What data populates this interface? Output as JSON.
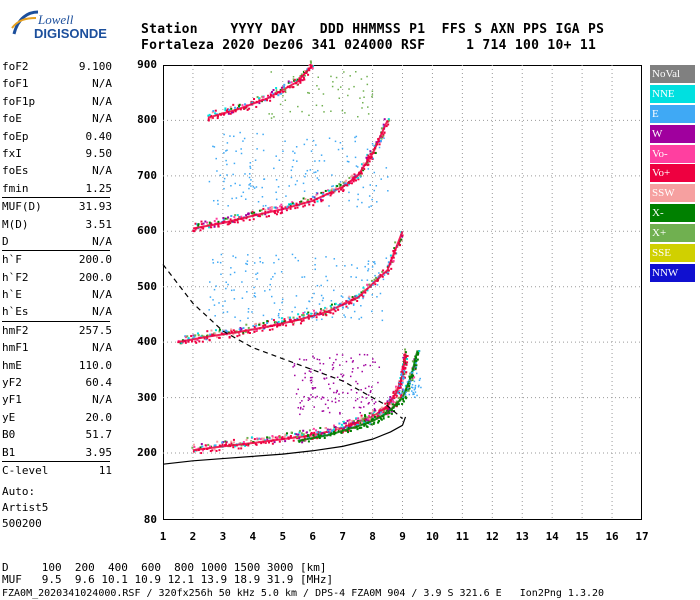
{
  "logo": {
    "line1": "Lowell",
    "line2": "DIGISONDE"
  },
  "header": {
    "row1": "Station    YYYY DAY   DDD HHMMSS P1  FFS S AXN PPS IGA PS",
    "row2": "Fortaleza 2020 Dez06 341 024000 RSF     1 714 100 10+ 11"
  },
  "params": [
    {
      "name": "foF2",
      "value": "9.100"
    },
    {
      "name": "foF1",
      "value": "N/A"
    },
    {
      "name": "foF1p",
      "value": "N/A"
    },
    {
      "name": "foE",
      "value": "N/A"
    },
    {
      "name": "foEp",
      "value": "0.40"
    },
    {
      "name": "fxI",
      "value": "9.50"
    },
    {
      "name": "foEs",
      "value": "N/A"
    },
    {
      "name": "fmin",
      "value": "1.25"
    },
    {
      "name": "MUF(D)",
      "value": "31.93"
    },
    {
      "name": "M(D)",
      "value": "3.51"
    },
    {
      "name": "D",
      "value": "N/A"
    },
    {
      "name": "h`F",
      "value": "200.0"
    },
    {
      "name": "h`F2",
      "value": "200.0"
    },
    {
      "name": "h`E",
      "value": "N/A"
    },
    {
      "name": "h`Es",
      "value": "N/A"
    },
    {
      "name": "hmF2",
      "value": "257.5"
    },
    {
      "name": "hmF1",
      "value": "N/A"
    },
    {
      "name": "hmE",
      "value": "110.0"
    },
    {
      "name": "yF2",
      "value": "60.4"
    },
    {
      "name": "yF1",
      "value": "N/A"
    },
    {
      "name": "yE",
      "value": "20.0"
    },
    {
      "name": "B0",
      "value": "51.7"
    },
    {
      "name": "B1",
      "value": "3.95"
    },
    {
      "name": "C-level",
      "value": "11"
    }
  ],
  "auto": {
    "line1": "Auto:",
    "line2": "Artist5",
    "line3": "500200"
  },
  "legend": [
    {
      "label": "NoVal",
      "color": "#808080"
    },
    {
      "label": "NNE",
      "color": "#00e0e0"
    },
    {
      "label": "E",
      "color": "#3fa9f5"
    },
    {
      "label": "W",
      "color": "#a0009e"
    },
    {
      "label": "Vo-",
      "color": "#ff3fa0"
    },
    {
      "label": "Vo+",
      "color": "#ee0040"
    },
    {
      "label": "SSW",
      "color": "#f6a0a0"
    },
    {
      "label": "X-",
      "color": "#008000"
    },
    {
      "label": "X+",
      "color": "#70b050"
    },
    {
      "label": "SSE",
      "color": "#d0d000"
    },
    {
      "label": "NNW",
      "color": "#1010d0"
    }
  ],
  "footer": {
    "line1": "D     100  200  400  600  800 1000 1500 3000 [km]",
    "line2": "MUF   9.5  9.6 10.1 10.9 12.1 13.9 18.9 31.9 [MHz]",
    "line3": "FZA0M_2020341024000.RSF / 320fx256h 50 kHz 5.0 km / DPS-4 FZA0M 904 / 3.9 S 321.6 E   Ion2Png 1.3.20"
  },
  "chart_data": {
    "type": "scatter",
    "title": "",
    "xlabel": "",
    "ylabel": "",
    "xlim": [
      1,
      17
    ],
    "ylim": [
      80,
      900
    ],
    "x_ticks": [
      "1",
      "2",
      "3",
      "4",
      "5",
      "6",
      "7",
      "8",
      "9",
      "10",
      "11",
      "12",
      "13",
      "14",
      "15",
      "16",
      "17"
    ],
    "y_ticks": [
      "900",
      "800",
      "700",
      "600",
      "500",
      "400",
      "300",
      "200",
      "80"
    ],
    "grid": "dotted",
    "series": [
      {
        "name": "Vo+",
        "color": "#ee0040",
        "trace": "1st hop O-mode",
        "x": [
          2.0,
          3.0,
          4.0,
          5.0,
          6.0,
          7.0,
          7.5,
          8.0,
          8.5,
          8.8,
          9.0,
          9.1
        ],
        "y": [
          205,
          212,
          218,
          225,
          232,
          245,
          255,
          265,
          285,
          310,
          340,
          380
        ]
      },
      {
        "name": "X-",
        "color": "#008000",
        "trace": "1st hop X-mode",
        "x": [
          5.5,
          6.5,
          7.5,
          8.0,
          8.5,
          9.0,
          9.3,
          9.5
        ],
        "y": [
          222,
          232,
          248,
          258,
          272,
          300,
          340,
          385
        ]
      },
      {
        "name": "Vo+",
        "color": "#ee0040",
        "trace": "2nd hop",
        "x": [
          1.5,
          2.5,
          3.5,
          4.5,
          5.5,
          6.5,
          7.5,
          8.5,
          9.0
        ],
        "y": [
          400,
          410,
          418,
          428,
          440,
          455,
          480,
          530,
          600
        ]
      },
      {
        "name": "Vo+",
        "color": "#ee0040",
        "trace": "3rd hop",
        "x": [
          2.0,
          3.0,
          4.0,
          5.0,
          6.0,
          7.0,
          7.5,
          8.0,
          8.5
        ],
        "y": [
          605,
          615,
          628,
          640,
          655,
          680,
          700,
          740,
          800
        ]
      },
      {
        "name": "Vo+",
        "color": "#ee0040",
        "trace": "4th hop",
        "x": [
          2.5,
          3.5,
          4.5,
          5.5,
          6.0
        ],
        "y": [
          805,
          820,
          840,
          870,
          900
        ]
      }
    ],
    "profile_solid": {
      "x": [
        1.0,
        2.0,
        3.0,
        4.0,
        5.0,
        6.0,
        7.0,
        8.0,
        8.6,
        9.0,
        9.1
      ],
      "y": [
        180,
        186,
        190,
        194,
        198,
        204,
        212,
        225,
        238,
        250,
        265
      ]
    },
    "profile_dashed": {
      "x": [
        1.0,
        2.0,
        3.0,
        4.0,
        5.0,
        6.0,
        7.0,
        8.0,
        8.5,
        9.0
      ],
      "y": [
        540,
        470,
        420,
        390,
        370,
        350,
        330,
        300,
        285,
        262
      ]
    }
  }
}
